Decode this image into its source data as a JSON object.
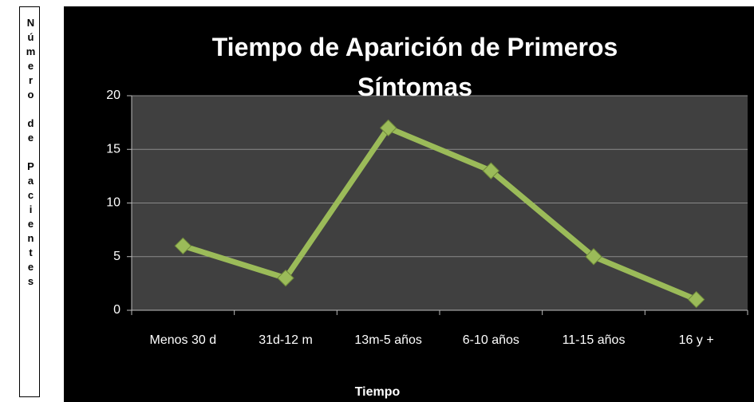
{
  "chart_data": {
    "type": "line",
    "title": "Tiempo de Aparición de Primeros Síntomas",
    "x_label": "Tiempo",
    "y_label": "Número de Pacientes",
    "categories": [
      "Menos 30 d",
      "31d-12 m",
      "13m-5 años",
      "6-10 años",
      "11-15 años",
      "16 y +"
    ],
    "values": [
      6,
      3,
      17,
      13,
      5,
      1
    ],
    "color": "#9bbb59",
    "ylim": [
      0,
      20
    ],
    "yticks": [
      0,
      5,
      10,
      15,
      20
    ],
    "grid": true
  }
}
